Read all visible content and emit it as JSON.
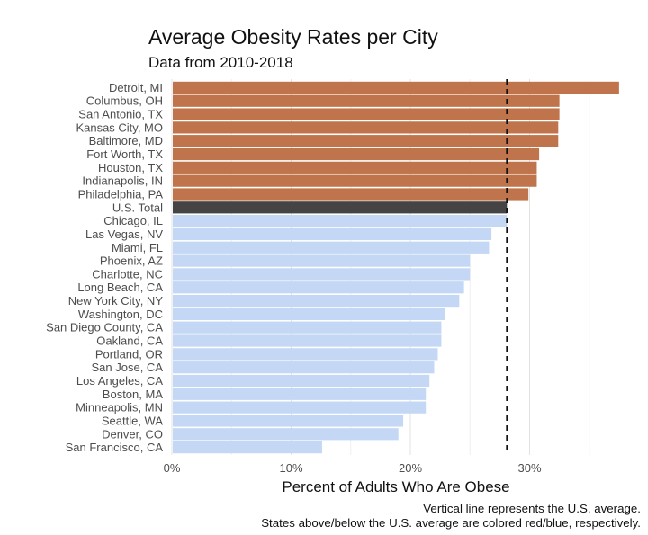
{
  "chart_data": {
    "type": "bar",
    "orientation": "horizontal",
    "title": "Average Obesity Rates per City",
    "subtitle": "Data from 2010-2018",
    "xlabel": "Percent of Adults Who Are Obese",
    "ylabel": "",
    "xlim": [
      0,
      38
    ],
    "x_ticks": [
      0,
      10,
      20,
      30
    ],
    "x_tick_labels": [
      "0%",
      "10%",
      "20%",
      "30%"
    ],
    "minor_gridlines": [
      5,
      15,
      25,
      35
    ],
    "grid": true,
    "reference_line": {
      "value": 28.1,
      "style": "dashed",
      "label": "U.S. average"
    },
    "colors": {
      "above": "#c0744c",
      "total": "#444444",
      "below": "#c4d8f5",
      "reference_line": "#111111"
    },
    "categories": [
      "Detroit, MI",
      "Columbus, OH",
      "San Antonio, TX",
      "Kansas City, MO",
      "Baltimore, MD",
      "Fort Worth, TX",
      "Houston, TX",
      "Indianapolis, IN",
      "Philadelphia, PA",
      "U.S. Total",
      "Chicago, IL",
      "Las Vegas, NV",
      "Miami, FL",
      "Phoenix, AZ",
      "Charlotte, NC",
      "Long Beach, CA",
      "New York City, NY",
      "Washington, DC",
      "San Diego County, CA",
      "Oakland, CA",
      "Portland, OR",
      "San Jose, CA",
      "Los Angeles, CA",
      "Boston, MA",
      "Minneapolis, MN",
      "Seattle, WA",
      "Denver, CO",
      "San Francisco, CA"
    ],
    "values": [
      37.5,
      32.5,
      32.5,
      32.4,
      32.4,
      30.8,
      30.6,
      30.6,
      29.9,
      28.1,
      28.1,
      26.8,
      26.6,
      25.0,
      25.0,
      24.5,
      24.1,
      22.9,
      22.6,
      22.6,
      22.3,
      22.0,
      21.6,
      21.3,
      21.3,
      19.4,
      19.0,
      12.6
    ],
    "groups": [
      "above",
      "above",
      "above",
      "above",
      "above",
      "above",
      "above",
      "above",
      "above",
      "total",
      "below",
      "below",
      "below",
      "below",
      "below",
      "below",
      "below",
      "below",
      "below",
      "below",
      "below",
      "below",
      "below",
      "below",
      "below",
      "below",
      "below",
      "below"
    ],
    "caption": [
      "Vertical line represents the U.S. average.",
      "States above/below the U.S. average are colored red/blue, respectively."
    ]
  }
}
